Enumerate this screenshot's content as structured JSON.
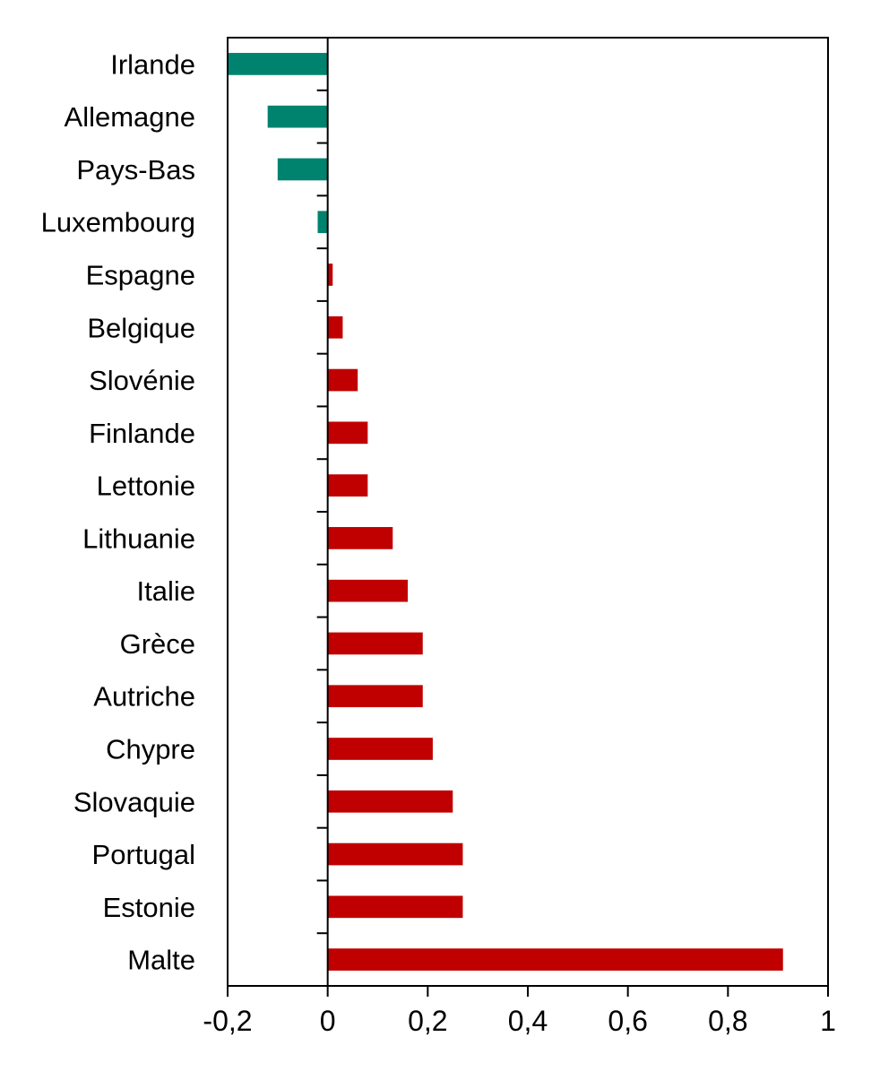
{
  "chart_data": {
    "type": "bar",
    "orientation": "horizontal",
    "title": "",
    "xlabel": "",
    "ylabel": "",
    "categories": [
      "Irlande",
      "Allemagne",
      "Pays-Bas",
      "Luxembourg",
      "Espagne",
      "Belgique",
      "Slovénie",
      "Finlande",
      "Lettonie",
      "Lithuanie",
      "Italie",
      "Grèce",
      "Autriche",
      "Chypre",
      "Slovaquie",
      "Portugal",
      "Estonie",
      "Malte"
    ],
    "values": [
      -0.2,
      -0.12,
      -0.1,
      -0.02,
      0.01,
      0.03,
      0.06,
      0.08,
      0.08,
      0.13,
      0.16,
      0.19,
      0.19,
      0.21,
      0.25,
      0.27,
      0.27,
      0.91
    ],
    "xlim": [
      -0.2,
      1.0
    ],
    "x_ticks": [
      -0.2,
      0,
      0.2,
      0.4,
      0.6,
      0.8,
      1
    ],
    "x_tick_labels": [
      "-0,2",
      "0",
      "0,2",
      "0,4",
      "0,6",
      "0,8",
      "1"
    ],
    "grid": false,
    "legend": "none",
    "colors": {
      "negative": "#00836E",
      "positive": "#C00000",
      "axis": "#000000"
    }
  }
}
